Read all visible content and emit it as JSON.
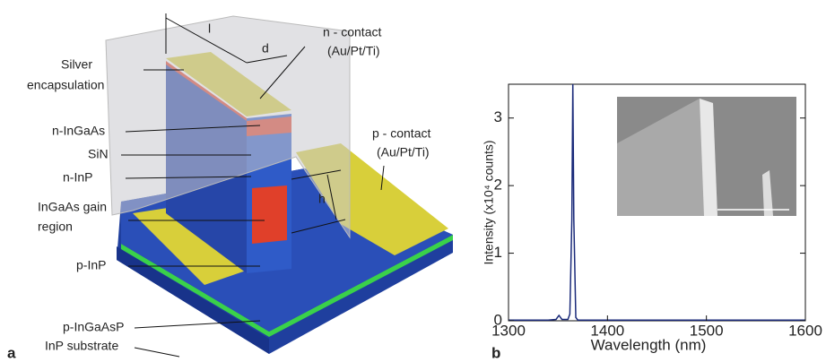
{
  "panel_labels": [
    "a",
    "b"
  ],
  "diagram": {
    "labels": [
      {
        "lines": [
          "Silver",
          "encapsulation"
        ]
      },
      {
        "lines": [
          "n-InGaAs"
        ]
      },
      {
        "lines": [
          "SiN"
        ]
      },
      {
        "lines": [
          "n-InP"
        ]
      },
      {
        "lines": [
          "InGaAs gain",
          "region"
        ]
      },
      {
        "lines": [
          "p-InP"
        ]
      },
      {
        "lines": [
          "p-InGaAsP"
        ]
      },
      {
        "lines": [
          "InP substrate"
        ]
      },
      {
        "lines": [
          "n - contact",
          "(Au/Pt/Ti)"
        ]
      },
      {
        "lines": [
          "p - contact",
          "(Au/Pt/Ti)"
        ]
      }
    ],
    "dimensions": [
      "l",
      "d",
      "h"
    ]
  },
  "chart_data": {
    "type": "line",
    "xlabel": "Wavelength (nm)",
    "ylabel": "Intensity (x10⁴ counts)",
    "x": [
      1300,
      1340,
      1348,
      1351,
      1354,
      1360,
      1362,
      1364,
      1365,
      1366,
      1368,
      1370,
      1400,
      1500,
      1600
    ],
    "series": [
      {
        "color": "#1a2a7a",
        "values": [
          0.01,
          0.01,
          0.02,
          0.08,
          0.02,
          0.02,
          0.1,
          1.5,
          3.5,
          1.5,
          0.05,
          0.01,
          0.01,
          0.01,
          0.01
        ]
      }
    ],
    "xlim": [
      1300,
      1600
    ],
    "ylim": [
      0,
      3.5
    ],
    "xticks": [
      1300,
      1400,
      1500,
      1600
    ],
    "yticks": [
      0,
      1,
      2,
      3
    ]
  }
}
